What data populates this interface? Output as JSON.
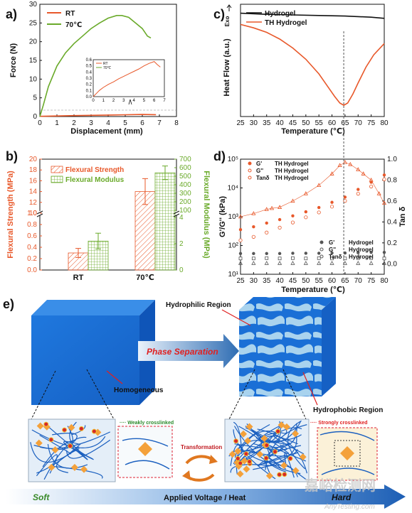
{
  "panel_labels": [
    "a)",
    "b)",
    "c)",
    "d)",
    "e)"
  ],
  "chart_data": [
    {
      "id": "a",
      "type": "line",
      "xlabel": "Displacement (mm)",
      "ylabel": "Force (N)",
      "xlim": [
        0,
        8
      ],
      "ylim": [
        0,
        30
      ],
      "xticks": [
        "0",
        "1",
        "2",
        "3",
        "4",
        "5",
        "6",
        "7",
        "8"
      ],
      "yticks": [
        "0",
        "5",
        "10",
        "15",
        "20",
        "25",
        "30"
      ],
      "legend_placement": "top-left",
      "colors": {
        "RT": "#e8582a",
        "70C": "#6aaa2a"
      },
      "series": [
        {
          "name": "RT",
          "x": [
            0,
            1,
            2,
            3,
            4,
            5,
            6,
            6.8
          ],
          "y": [
            0.05,
            0.15,
            0.25,
            0.32,
            0.4,
            0.48,
            0.55,
            0.5
          ]
        },
        {
          "name": "70℃",
          "x": [
            0,
            0.2,
            0.5,
            1,
            1.5,
            2,
            2.5,
            3,
            3.5,
            4,
            4.5,
            4.8,
            5.2,
            5.6,
            6,
            6.3,
            6.5
          ],
          "y": [
            0,
            3,
            8,
            13.5,
            17,
            19.5,
            21.5,
            23.5,
            25,
            26.3,
            27,
            27,
            26.5,
            25,
            23.5,
            21.5,
            21
          ]
        }
      ],
      "inset": {
        "xlim": [
          0,
          7
        ],
        "ylim": [
          0,
          0.6
        ],
        "xticks": [
          "0",
          "1",
          "2",
          "3",
          "4",
          "5",
          "6",
          "7"
        ],
        "yticks": [
          "0.0",
          "0.1",
          "0.2",
          "0.3",
          "0.4",
          "0.5",
          "0.6"
        ],
        "legend": [
          "RT",
          "70℃"
        ],
        "series": [
          {
            "name": "RT",
            "x": [
              0,
              0.3,
              0.6,
              1,
              1.5,
              2,
              2.5,
              3,
              3.5,
              4,
              4.5,
              5,
              5.5,
              6,
              6.3,
              6.6
            ],
            "y": [
              0,
              0.05,
              0.1,
              0.15,
              0.2,
              0.24,
              0.29,
              0.33,
              0.37,
              0.41,
              0.45,
              0.5,
              0.54,
              0.57,
              0.52,
              0.48
            ]
          }
        ]
      }
    },
    {
      "id": "b",
      "type": "bar",
      "categories": [
        "RT",
        "70℃"
      ],
      "ylabel_left": "Flexural Strength (MPa)",
      "ylabel_right": "Flexural Modulus (MPa)",
      "left_ticks": [
        "0.0",
        "0.2",
        "0.4",
        "0.6",
        "0.8",
        "1.0",
        "10",
        "12",
        "14",
        "16",
        "18",
        "20"
      ],
      "right_ticks": [
        "0",
        "2",
        "4",
        "100",
        "200",
        "300",
        "400",
        "500",
        "600",
        "700"
      ],
      "legend_placement": "top-left",
      "series": [
        {
          "name": "Flexural Strength",
          "values": [
            0.3,
            14
          ],
          "errors": [
            0.08,
            2.4
          ],
          "color": "#e8582a"
        },
        {
          "name": "Flexural Modulus",
          "values": [
            2.2,
            540
          ],
          "errors": [
            0.6,
            80
          ],
          "color": "#6aaa2a"
        }
      ]
    },
    {
      "id": "c",
      "type": "line",
      "xlabel": "Temperature (℃)",
      "ylabel": "Heat Flow (a.u.)",
      "exo_label": "Exo",
      "xlim": [
        25,
        80
      ],
      "xticks": [
        "25",
        "30",
        "35",
        "40",
        "45",
        "50",
        "55",
        "60",
        "65",
        "70",
        "75",
        "80"
      ],
      "marker_line_x": 64.5,
      "legend_placement": "top-left",
      "series": [
        {
          "name": "Hydrogel",
          "color": "#111111",
          "x": [
            25,
            35,
            45,
            55,
            65,
            75,
            80
          ],
          "y": [
            0.92,
            0.91,
            0.905,
            0.9,
            0.895,
            0.885,
            0.875
          ]
        },
        {
          "name": "TH Hydrogel",
          "color": "#e8582a",
          "x": [
            25,
            30,
            35,
            40,
            45,
            50,
            55,
            58,
            61,
            63,
            64.5,
            66,
            68,
            70,
            73,
            76,
            80
          ],
          "y": [
            0.82,
            0.79,
            0.75,
            0.69,
            0.61,
            0.51,
            0.38,
            0.28,
            0.18,
            0.12,
            0.1,
            0.12,
            0.2,
            0.3,
            0.44,
            0.55,
            0.65
          ]
        }
      ]
    },
    {
      "id": "d",
      "type": "scatter",
      "xlabel": "Temperature (℃)",
      "ylabel_left": "G'/G'' (kPa)",
      "ylabel_right": "Tan δ",
      "xlim": [
        25,
        80
      ],
      "ylim_left_log": [
        1,
        5
      ],
      "ylim_right": [
        -0.1,
        1.0
      ],
      "xticks": [
        "25",
        "30",
        "35",
        "40",
        "45",
        "50",
        "55",
        "60",
        "65",
        "70",
        "75",
        "80"
      ],
      "yticks_left": [
        "10¹",
        "10²",
        "10³",
        "10⁴",
        "10⁵"
      ],
      "yticks_right": [
        "0.0",
        "0.2",
        "0.4",
        "0.6",
        "0.8",
        "1.0"
      ],
      "marker_line_x": 64.5,
      "legend_top": [
        {
          "sym": "G'",
          "label": "TH Hydrogel"
        },
        {
          "sym": "G''",
          "label": "TH Hydrogel"
        },
        {
          "sym": "Tanδ",
          "label": "TH Hydrogel"
        }
      ],
      "legend_bottom": [
        {
          "sym": "G'",
          "label": "Hydrogel"
        },
        {
          "sym": "G''",
          "label": "Hydrogel"
        },
        {
          "sym": "Tanδ",
          "label": "Hydrogel"
        }
      ],
      "series": [
        {
          "name": "G' TH Hydrogel",
          "color": "#e8582a",
          "x": [
            25,
            30,
            35,
            40,
            45,
            50,
            55,
            60,
            65,
            70,
            75,
            80
          ],
          "log_y": [
            2.55,
            2.65,
            2.78,
            2.9,
            3.03,
            3.17,
            3.32,
            3.5,
            3.68,
            3.95,
            4.2,
            4.45
          ]
        },
        {
          "name": "G'' TH Hydrogel",
          "color": "#e8582a",
          "x": [
            25,
            30,
            35,
            40,
            45,
            50,
            55,
            60,
            65,
            70,
            75,
            80
          ],
          "log_y": [
            2.18,
            2.3,
            2.45,
            2.62,
            2.8,
            2.98,
            3.15,
            3.35,
            3.55,
            3.8,
            4.05,
            4.3
          ]
        },
        {
          "name": "Tanδ TH Hydrogel",
          "color": "#e8582a",
          "x": [
            25,
            30,
            35,
            37,
            40,
            45,
            50,
            55,
            60,
            63,
            65,
            67,
            70,
            72,
            75,
            78,
            80
          ],
          "y": [
            0.45,
            0.48,
            0.52,
            0.53,
            0.54,
            0.6,
            0.67,
            0.75,
            0.86,
            0.94,
            0.97,
            0.95,
            0.9,
            0.86,
            0.8,
            0.67,
            0.58
          ]
        },
        {
          "name": "G' Hydrogel",
          "color": "#555555",
          "x": [
            25,
            30,
            35,
            40,
            45,
            50,
            55,
            60,
            65,
            70,
            75,
            80
          ],
          "log_y": [
            1.72,
            1.72,
            1.72,
            1.72,
            1.73,
            1.73,
            1.73,
            1.74,
            1.74,
            1.75,
            1.76,
            1.76
          ]
        },
        {
          "name": "G'' Hydrogel",
          "color": "#555555",
          "x": [
            25,
            30,
            35,
            40,
            45,
            50,
            55,
            60,
            65,
            70,
            75,
            80
          ],
          "log_y": [
            1.55,
            1.55,
            1.56,
            1.55,
            1.56,
            1.55,
            1.56,
            1.55,
            1.55,
            1.56,
            1.56,
            1.55
          ]
        },
        {
          "name": "Tanδ Hydrogel",
          "color": "#555555",
          "x": [
            25,
            30,
            35,
            40,
            45,
            50,
            55,
            60,
            65,
            70,
            75,
            80
          ],
          "y": [
            0.005,
            0.005,
            0.005,
            0.005,
            0.005,
            0.005,
            0.005,
            0.005,
            0.005,
            0.005,
            0.005,
            0.005
          ]
        }
      ]
    }
  ],
  "schematic": {
    "phase_separation": "Phase Separation",
    "hydrophilic": "Hydrophilic Region",
    "hydrophobic": "Hydrophobic Region",
    "homogeneous": "Homogeneous",
    "weakly": "···· Weakly crosslinked",
    "strongly": "···· Strongly crosslinked",
    "transformation": "Transformation",
    "soft": "Soft",
    "applied": "Applied Voltage / Heat",
    "hard": "Hard",
    "colors": {
      "cube": "#1a6fd6",
      "light": "#a9d3ee",
      "arrow": "#2f6db3"
    }
  },
  "watermark": {
    "main": "嘉峪检测网",
    "sub": "AnyTesting.com"
  }
}
